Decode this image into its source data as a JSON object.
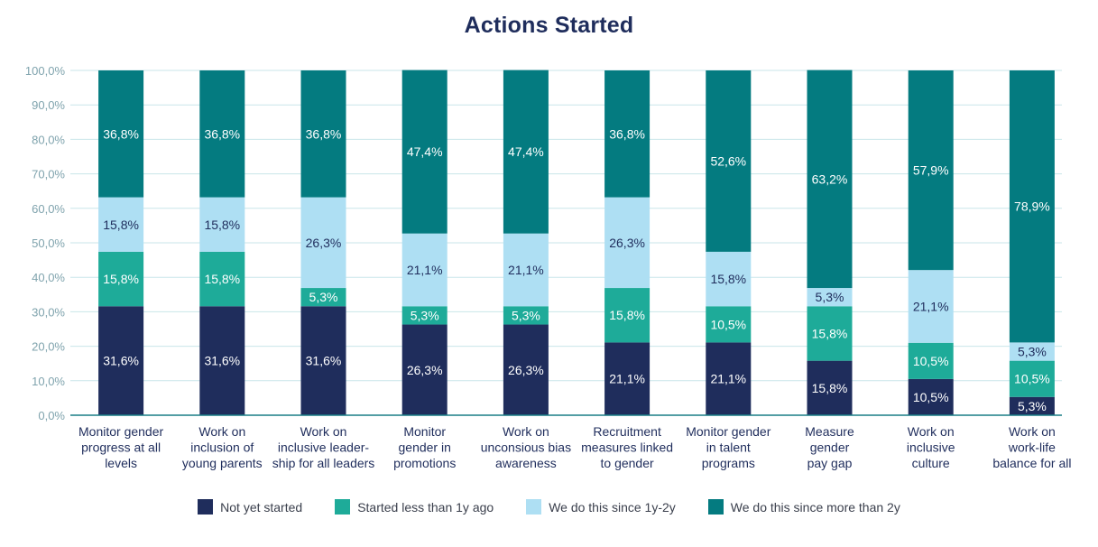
{
  "chart_data": {
    "type": "bar",
    "stacked": true,
    "title": "Actions Started",
    "ylim": [
      0,
      100
    ],
    "yticks": [
      "0,0%",
      "10,0%",
      "20,0%",
      "30,0%",
      "40,0%",
      "50,0%",
      "60,0%",
      "70,0%",
      "80,0%",
      "90,0%",
      "100,0%"
    ],
    "grid": true,
    "legend_position": "bottom",
    "categories": [
      [
        "Monitor gender",
        "progress at all",
        "levels"
      ],
      [
        "Work on",
        "inclusion of",
        "young parents"
      ],
      [
        "Work on",
        "inclusive leader-",
        "ship for all leaders"
      ],
      [
        "Monitor",
        "gender in",
        "promotions"
      ],
      [
        "Work on",
        "unconsious bias",
        "awareness"
      ],
      [
        "Recruitment",
        "measures linked",
        "to gender"
      ],
      [
        "Monitor gender",
        "in talent",
        "programs"
      ],
      [
        "Measure",
        "gender",
        "pay gap"
      ],
      [
        "Work on",
        "inclusive",
        "culture"
      ],
      [
        "Work on",
        "work-life",
        "balance for all"
      ]
    ],
    "series": [
      {
        "name": "Not yet started",
        "color": "#1f2d5c",
        "label_color": "#ffffff",
        "values": [
          31.6,
          31.6,
          31.6,
          26.3,
          26.3,
          21.1,
          21.1,
          15.8,
          10.5,
          5.3
        ],
        "labels": [
          "31,6%",
          "31,6%",
          "31,6%",
          "26,3%",
          "26,3%",
          "21,1%",
          "21,1%",
          "15,8%",
          "10,5%",
          "5,3%"
        ]
      },
      {
        "name": "Started less than 1y ago",
        "color": "#1eab99",
        "label_color": "#ffffff",
        "values": [
          15.8,
          15.8,
          5.3,
          5.3,
          5.3,
          15.8,
          10.5,
          15.8,
          10.5,
          10.5
        ],
        "labels": [
          "15,8%",
          "15,8%",
          "5,3%",
          "5,3%",
          "5,3%",
          "15,8%",
          "10,5%",
          "15,8%",
          "10,5%",
          "10,5%"
        ]
      },
      {
        "name": "We do this since 1y-2y",
        "color": "#aedff3",
        "label_color": "#1f2d5c",
        "values": [
          15.8,
          15.8,
          26.3,
          21.1,
          21.1,
          26.3,
          15.8,
          5.3,
          21.1,
          5.3
        ],
        "labels": [
          "15,8%",
          "15,8%",
          "26,3%",
          "21,1%",
          "21,1%",
          "26,3%",
          "15,8%",
          "5,3%",
          "21,1%",
          "5,3%"
        ]
      },
      {
        "name": "We do this since more than 2y",
        "color": "#047b80",
        "label_color": "#ffffff",
        "values": [
          36.8,
          36.8,
          36.8,
          47.4,
          47.4,
          36.8,
          52.6,
          63.2,
          57.9,
          78.9
        ],
        "labels": [
          "36,8%",
          "36,8%",
          "36,8%",
          "47,4%",
          "47,4%",
          "36,8%",
          "52,6%",
          "63,2%",
          "57,9%",
          "78,9%"
        ]
      }
    ]
  }
}
